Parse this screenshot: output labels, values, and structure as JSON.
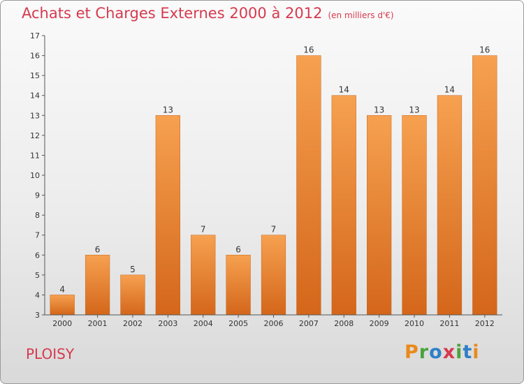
{
  "header": {
    "title": "Achats et Charges Externes 2000 à 2012",
    "unit": "(en milliers d'€)"
  },
  "footer": {
    "commune": "PLOISY",
    "brand": "Proxiti"
  },
  "brand_colors": {
    "P": "#e98a1a",
    "r": "#4aa33c",
    "o": "#2f7fc8",
    "x": "#d63a4e",
    "i1": "#4aa33c",
    "t": "#2f7fc8",
    "i2": "#e98a1a"
  },
  "chart_data": {
    "type": "bar",
    "title": "Achats et Charges Externes 2000 à 2012",
    "categories": [
      "2000",
      "2001",
      "2002",
      "2003",
      "2004",
      "2005",
      "2006",
      "2007",
      "2008",
      "2009",
      "2010",
      "2011",
      "2012"
    ],
    "values": [
      4,
      6,
      5,
      13,
      7,
      6,
      7,
      16,
      14,
      13,
      13,
      14,
      16
    ],
    "ylim": [
      3,
      17
    ],
    "yticks": [
      3,
      4,
      5,
      6,
      7,
      8,
      9,
      10,
      11,
      12,
      13,
      14,
      15,
      16,
      17
    ],
    "grid": false,
    "bar_color": "#f08a25"
  }
}
